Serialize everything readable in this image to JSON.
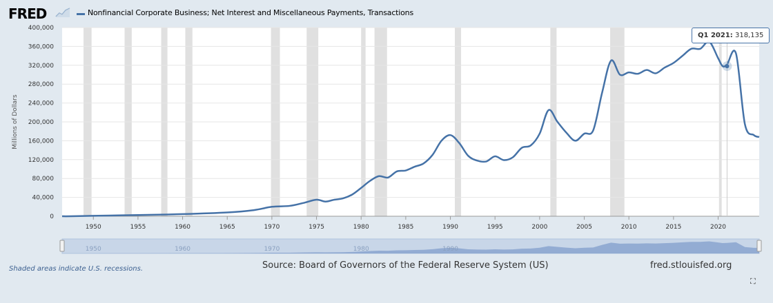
{
  "header": {
    "logo_text": "FRED",
    "logo_icon": "chart-line-icon",
    "series_label": "Nonfinancial Corporate Business; Net Interest and Miscellaneous Payments, Transactions"
  },
  "footer": {
    "recession_note": "Shaded areas indicate U.S. recessions.",
    "source": "Source: Board of Governors of the Federal Reserve System (US)",
    "site": "fred.stlouisfed.org",
    "fullscreen_icon": "fullscreen-icon"
  },
  "tooltip": {
    "date": "Q1 2021:",
    "value": "318,135"
  },
  "navigator": {
    "tick_labels": [
      "1950",
      "1960",
      "1970",
      "1980",
      "1990"
    ]
  },
  "colors": {
    "series": "#4572a7",
    "background": "#e1e9f0",
    "recession": "#cccccc"
  },
  "chart_data": {
    "type": "line",
    "title": "",
    "xlabel": "",
    "ylabel": "Millions of Dollars",
    "xlim": [
      1946.5,
      2024.6
    ],
    "ylim": [
      0,
      400000
    ],
    "y_ticks": [
      0,
      40000,
      80000,
      120000,
      160000,
      200000,
      240000,
      280000,
      320000,
      360000,
      400000
    ],
    "y_tick_labels": [
      "0",
      "40,000",
      "80,000",
      "120,000",
      "160,000",
      "200,000",
      "240,000",
      "280,000",
      "320,000",
      "360,000",
      "400,000"
    ],
    "x_ticks": [
      1950,
      1955,
      1960,
      1965,
      1970,
      1975,
      1980,
      1985,
      1990,
      1995,
      2000,
      2005,
      2010,
      2015,
      2020
    ],
    "x_tick_labels": [
      "1950",
      "1955",
      "1960",
      "1965",
      "1970",
      "1975",
      "1980",
      "1985",
      "1990",
      "1995",
      "2000",
      "2005",
      "2010",
      "2015",
      "2020"
    ],
    "grid": true,
    "recessions": [
      [
        1948.9,
        1949.8
      ],
      [
        1953.5,
        1954.3
      ],
      [
        1957.6,
        1958.3
      ],
      [
        1960.3,
        1961.1
      ],
      [
        1969.9,
        1970.9
      ],
      [
        1973.9,
        1975.2
      ],
      [
        1980.0,
        1980.5
      ],
      [
        1981.5,
        1982.9
      ],
      [
        1990.5,
        1991.2
      ],
      [
        2001.2,
        2001.9
      ],
      [
        2007.9,
        2009.5
      ],
      [
        2020.1,
        2020.4
      ]
    ],
    "series": [
      {
        "name": "Nonfinancial Corporate Business; Net Interest and Miscellaneous Payments, Transactions",
        "x": [
          1946.5,
          1947.5,
          1951.8,
          1955,
          1960,
          1965,
          1968,
          1970,
          1972,
          1973.5,
          1975,
          1976,
          1977,
          1978,
          1979,
          1980,
          1981,
          1982,
          1983,
          1984,
          1985,
          1986,
          1987,
          1988,
          1989,
          1990,
          1991,
          1992,
          1993,
          1994,
          1995,
          1996,
          1997,
          1998,
          1999,
          2000,
          2001,
          2002,
          2003,
          2004,
          2005,
          2006,
          2007,
          2008,
          2009,
          2010,
          2011,
          2012,
          2013,
          2014,
          2015,
          2016,
          2017,
          2018,
          2019,
          2020,
          2020.5,
          2021,
          2022,
          2023,
          2024,
          2024.6
        ],
        "y": [
          0,
          0,
          1500,
          2500,
          4500,
          8000,
          13000,
          20000,
          22000,
          28000,
          35000,
          31000,
          35000,
          38000,
          46000,
          60000,
          75000,
          85000,
          82000,
          95000,
          97000,
          105000,
          112000,
          130000,
          160000,
          172000,
          155000,
          128000,
          118000,
          116000,
          127000,
          119000,
          125000,
          145000,
          150000,
          175000,
          225000,
          200000,
          177000,
          160000,
          175000,
          182000,
          262000,
          330000,
          300000,
          305000,
          302000,
          310000,
          303000,
          315000,
          325000,
          340000,
          355000,
          355000,
          370000,
          335000,
          318135,
          322000,
          345000,
          195000,
          172000,
          168000
        ]
      }
    ],
    "annotations": [
      "Q1 2021: 318,135"
    ]
  }
}
